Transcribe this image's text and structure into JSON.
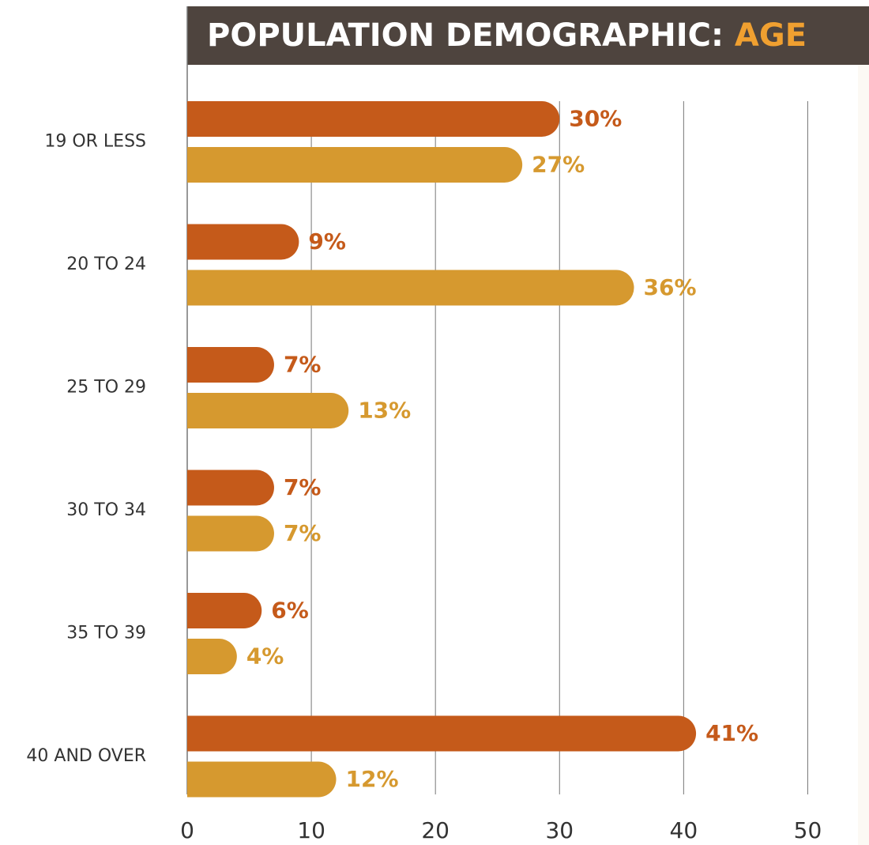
{
  "chart_data": {
    "type": "hbar",
    "title": "POPULATION DEMOGRAPHIC:",
    "title_highlight": "AGE",
    "categories": [
      "19 OR LESS",
      "20 TO 24",
      "25 TO 29",
      "30 TO 34",
      "35 TO 39",
      "40 AND OVER"
    ],
    "series": [
      {
        "color": "#c55a1a",
        "values": [
          30,
          9,
          7,
          7,
          6,
          41
        ],
        "value_labels": [
          "30%",
          "9%",
          "7%",
          "7%",
          "6%",
          "41%"
        ]
      },
      {
        "color": "#d6992f",
        "values": [
          27,
          36,
          13,
          7,
          4,
          12
        ],
        "value_labels": [
          "27%",
          "36%",
          "13%",
          "7%",
          "4%",
          "12%"
        ]
      }
    ],
    "xlim": [
      0,
      55
    ],
    "xticks": [
      0,
      10,
      20,
      30,
      40,
      50
    ],
    "grid": true
  }
}
